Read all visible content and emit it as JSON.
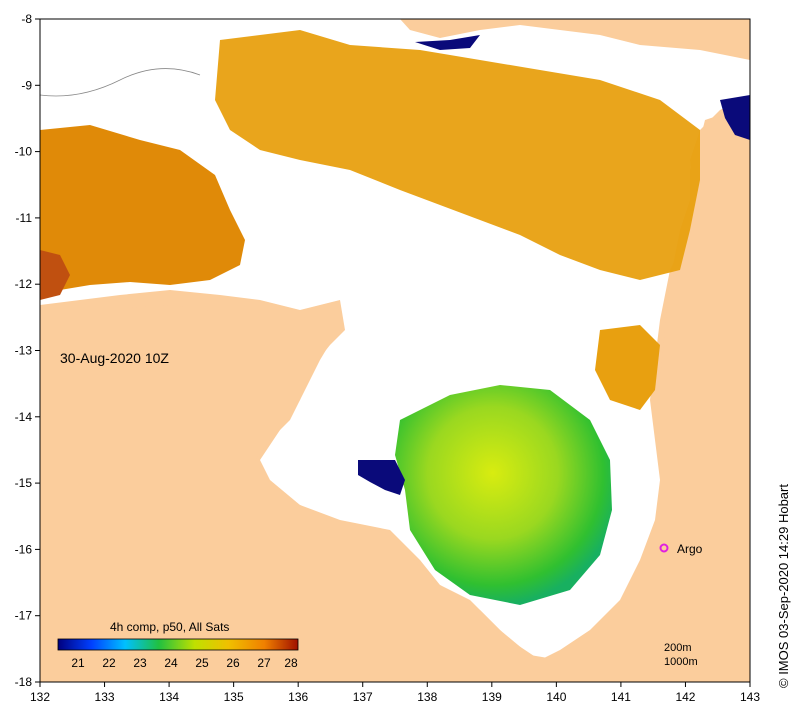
{
  "map": {
    "timestamp": "30-Aug-2020 10Z",
    "credit": "© IMOS 03-Sep-2020 14:29 Hobart",
    "argo_label": "Argo",
    "x_ticks": [
      "132",
      "133",
      "134",
      "135",
      "136",
      "137",
      "138",
      "139",
      "140",
      "141",
      "142",
      "143"
    ],
    "y_ticks": [
      "-8",
      "-9",
      "-10",
      "-11",
      "-12",
      "-13",
      "-14",
      "-15",
      "-16",
      "-17",
      "-18"
    ],
    "colors": {
      "land": "#fbcd9c",
      "cloud": "#ffffff",
      "sst_cold": "#0a0a7a",
      "sst_warm": "#e0a000",
      "argo": "#e020e0"
    }
  },
  "colorbar": {
    "title": "4h comp, p50, All Sats",
    "labels": [
      "21",
      "22",
      "23",
      "24",
      "25",
      "26",
      "27",
      "28"
    ],
    "stops": [
      "#00007f",
      "#0040ff",
      "#00c0ff",
      "#20c040",
      "#c0e000",
      "#f0c000",
      "#f08000",
      "#a01000"
    ]
  },
  "contours": {
    "line1": "200m",
    "line2": "1000m"
  }
}
